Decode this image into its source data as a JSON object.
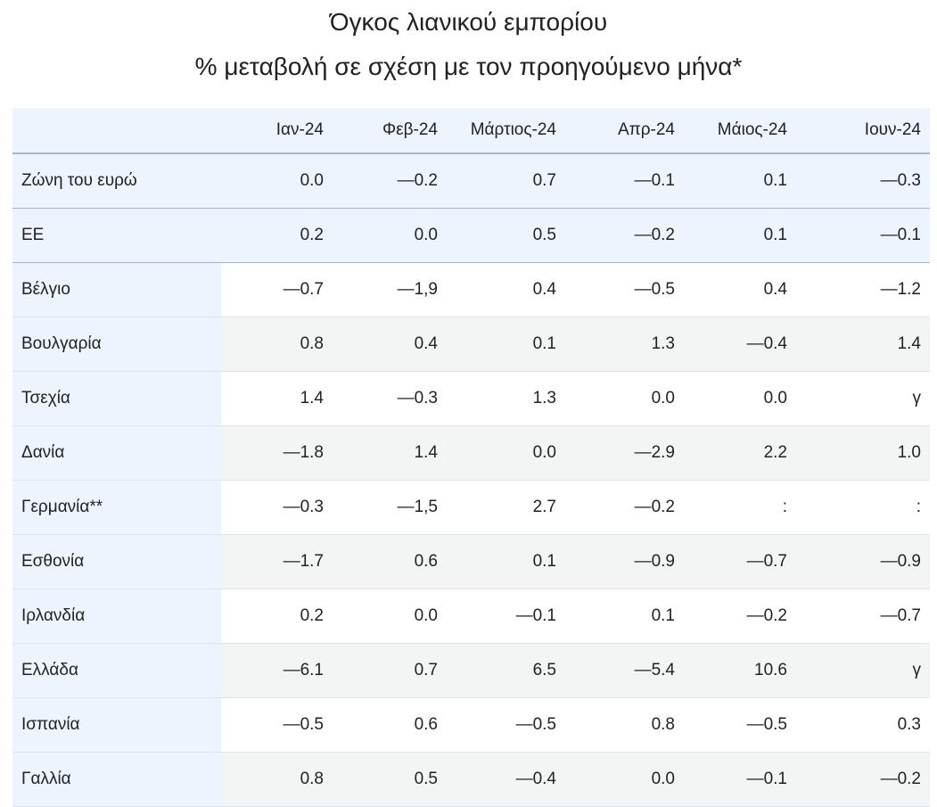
{
  "title": {
    "line1": "Όγκος λιανικού εμπορίου",
    "line2": "% μεταβολή σε σχέση με τον προηγούμενο μήνα*"
  },
  "table": {
    "columns": [
      "",
      "Ιαν-24",
      "Φεβ-24",
      "Μάρτιος-24",
      "Απρ-24",
      "Μάιος-24",
      "Ιουν-24"
    ],
    "rows": [
      {
        "name": "Ζώνη του ευρώ",
        "type": "agg",
        "values": [
          "0.0",
          "—0.2",
          "0.7",
          "—0.1",
          "0.1",
          "—0.3"
        ]
      },
      {
        "name": "ΕΕ",
        "type": "agg",
        "values": [
          "0.2",
          "0.0",
          "0.5",
          "—0.2",
          "0.1",
          "—0.1"
        ]
      },
      {
        "name": "Βέλγιο",
        "type": "country",
        "values": [
          "—0.7",
          "—1,9",
          "0.4",
          "—0.5",
          "0.4",
          "—1.2"
        ]
      },
      {
        "name": "Βουλγαρία",
        "type": "country",
        "values": [
          "0.8",
          "0.4",
          "0.1",
          "1.3",
          "—0.4",
          "1.4"
        ]
      },
      {
        "name": "Τσεχία",
        "type": "country",
        "values": [
          "1.4",
          "—0.3",
          "1.3",
          "0.0",
          "0.0",
          "γ"
        ]
      },
      {
        "name": "Δανία",
        "type": "country",
        "values": [
          "—1.8",
          "1.4",
          "0.0",
          "—2.9",
          "2.2",
          "1.0"
        ]
      },
      {
        "name": "Γερμανία**",
        "type": "country",
        "values": [
          "—0.3",
          "—1,5",
          "2.7",
          "—0.2",
          ":",
          ":"
        ]
      },
      {
        "name": "Εσθονία",
        "type": "country",
        "values": [
          "—1.7",
          "0.6",
          "0.1",
          "—0.9",
          "—0.7",
          "—0.9"
        ]
      },
      {
        "name": "Ιρλανδία",
        "type": "country",
        "values": [
          "0.2",
          "0.0",
          "—0.1",
          "0.1",
          "—0.2",
          "—0.7"
        ]
      },
      {
        "name": "Ελλάδα",
        "type": "country",
        "values": [
          "—6.1",
          "0.7",
          "6.5",
          "—5.4",
          "10.6",
          "γ"
        ]
      },
      {
        "name": "Ισπανία",
        "type": "country",
        "values": [
          "—0.5",
          "0.6",
          "—0.5",
          "0.8",
          "—0.5",
          "0.3"
        ]
      },
      {
        "name": "Γαλλία",
        "type": "country",
        "values": [
          "0.8",
          "0.5",
          "—0.4",
          "0.0",
          "—0.1",
          "—0.2"
        ]
      }
    ]
  }
}
